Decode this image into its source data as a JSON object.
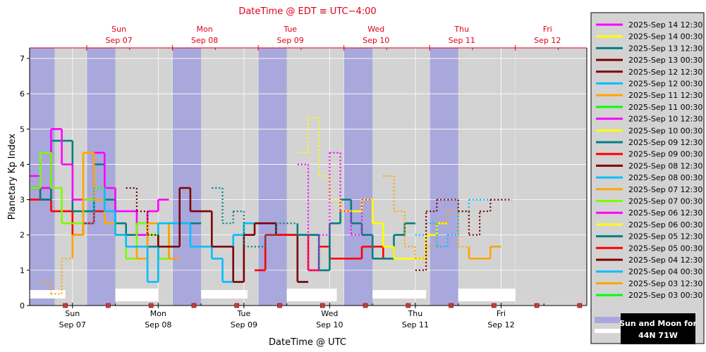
{
  "chart_data": {
    "type": "line",
    "top_title": "DateTime @ EDT ≡ UTC−4:00",
    "xlabel": "DateTime @ UTC",
    "ylabel": "Planetary Kp Index",
    "ylim": [
      0,
      7.3
    ],
    "y_ticks": [
      "0",
      "1",
      "2",
      "3",
      "4",
      "5",
      "6",
      "7"
    ],
    "x_range_days": [
      "2025-09-06 12:00",
      "2025-09-13 00:00"
    ],
    "top_day_labels": [
      {
        "day": "Sun",
        "date": "Sep 07"
      },
      {
        "day": "Mon",
        "date": "Sep 08"
      },
      {
        "day": "Tue",
        "date": "Sep 09"
      },
      {
        "day": "Wed",
        "date": "Sep 10"
      },
      {
        "day": "Thu",
        "date": "Sep 11"
      },
      {
        "day": "Fri",
        "date": "Sep 12"
      }
    ],
    "bottom_day_labels": [
      {
        "day": "Sun",
        "date": "Sep 07"
      },
      {
        "day": "Mon",
        "date": "Sep 08"
      },
      {
        "day": "Tue",
        "date": "Sep 09"
      },
      {
        "day": "Wed",
        "date": "Sep 10"
      },
      {
        "day": "Thu",
        "date": "Sep 11"
      },
      {
        "day": "Fri",
        "date": "Sep 12"
      }
    ],
    "night_bands_utc": [
      [
        "2025-09-06 12:00",
        "2025-09-06 19:00"
      ],
      [
        "2025-09-07 04:00",
        "2025-09-07 12:00"
      ],
      [
        "2025-09-08 04:00",
        "2025-09-08 12:00"
      ],
      [
        "2025-09-09 04:00",
        "2025-09-09 12:00"
      ],
      [
        "2025-09-10 04:00",
        "2025-09-10 12:00"
      ],
      [
        "2025-09-11 04:00",
        "2025-09-11 12:00"
      ]
    ],
    "moon_bars_utc": [
      [
        "2025-09-06 12:00",
        "2025-09-06 22:00"
      ],
      [
        "2025-09-07 12:00",
        "2025-09-08 00:00"
      ],
      [
        "2025-09-08 12:00",
        "2025-09-09 01:00"
      ],
      [
        "2025-09-09 12:00",
        "2025-09-10 02:00"
      ],
      [
        "2025-09-10 12:00",
        "2025-09-11 03:00"
      ],
      [
        "2025-09-11 12:00",
        "2025-09-12 04:00"
      ]
    ],
    "grid": true,
    "legend_placement": "right",
    "series": [
      {
        "name": "2025-Sep 14 12:30",
        "color": "#ff00ff",
        "dotted_until": null,
        "start": null,
        "values": []
      },
      {
        "name": "2025-Sep 14 00:30",
        "color": "#ffff00",
        "start": null,
        "values": []
      },
      {
        "name": "2025-Sep 13 12:30",
        "color": "#008080",
        "start": null,
        "values": []
      },
      {
        "name": "2025-Sep 13 00:30",
        "color": "#800000",
        "start": null,
        "values": []
      },
      {
        "name": "2025-Sep 12 12:30",
        "color": "#800000",
        "start": "2025-09-11 00:00",
        "dotted_until": "2025-09-12 15:00",
        "values": [
          1.0,
          2.67,
          3.0,
          3.0,
          2.67,
          2.0,
          2.67,
          3.0,
          3.0
        ]
      },
      {
        "name": "2025-Sep 12 00:30",
        "color": "#00bfff",
        "start": "2025-09-11 00:00",
        "dotted_until": "2025-09-12 03:00",
        "values": [
          2.0,
          2.33,
          1.67,
          2.0,
          2.67,
          3.0,
          3.0,
          3.0
        ]
      },
      {
        "name": "2025-Sep 11 12:30",
        "color": "#ffa500",
        "start": "2025-09-10 15:00",
        "dotted_until": "2025-09-11 15:00",
        "values": [
          3.67,
          2.67,
          1.67,
          1.33,
          1.67,
          2.33,
          2.67,
          1.67,
          1.33,
          1.33,
          1.67
        ]
      },
      {
        "name": "2025-Sep 11 00:30",
        "color": "#00ff00",
        "start": null,
        "values": []
      },
      {
        "name": "2025-Sep 10 12:30",
        "color": "#ff00ff",
        "start": "2025-09-09 15:00",
        "dotted_until": "2025-09-10 15:00",
        "values": [
          4.0,
          1.0,
          2.0,
          4.33,
          2.67,
          2.0,
          3.0
        ]
      },
      {
        "name": "2025-Sep 10 00:30",
        "color": "#ffff00",
        "start": "2025-09-09 15:00",
        "dotted_until": "2025-09-10 03:00",
        "values": [
          4.33,
          5.33,
          3.67,
          3.0,
          2.67,
          2.67,
          3.0,
          2.33,
          1.67,
          1.33,
          1.33,
          1.33,
          2.0,
          2.33
        ]
      },
      {
        "name": "2025-Sep 09 12:30",
        "color": "#008080",
        "start": "2025-09-08 15:00",
        "dotted_until": "2025-09-09 15:00",
        "values": [
          3.33,
          2.33,
          2.67,
          1.67,
          1.67,
          2.0,
          2.33,
          2.33,
          2.0,
          2.0,
          1.0,
          2.33,
          3.0,
          2.33,
          2.0,
          1.33,
          1.33,
          2.0,
          2.33
        ]
      },
      {
        "name": "2025-Sep 09 00:30",
        "color": "#ff0000",
        "start": "2025-09-09 03:00",
        "values": [
          1.0,
          2.0,
          2.0,
          2.0,
          2.0,
          1.0,
          1.67,
          1.33,
          1.33,
          1.33,
          1.67,
          1.67,
          1.33
        ]
      },
      {
        "name": "2025-Sep 08 12:30",
        "color": "#800000",
        "start": "2025-09-07 15:00",
        "dotted_until": "2025-09-08 00:00",
        "values": [
          3.33,
          2.67,
          2.0,
          1.67,
          1.67,
          3.33,
          2.67,
          2.67,
          1.67,
          1.67,
          0.67,
          2.0,
          2.33,
          2.33,
          2.0,
          2.0,
          0.67
        ]
      },
      {
        "name": "2025-Sep 08 00:30",
        "color": "#00bfff",
        "start": "2025-09-07 03:00",
        "dotted_until": "2025-09-07 09:00",
        "values": [
          2.33,
          3.33,
          2.67,
          2.0,
          1.67,
          1.67,
          0.67,
          2.33,
          2.33,
          2.33,
          1.67,
          1.67,
          1.33,
          0.67,
          2.0,
          2.33,
          2.33,
          2.33,
          2.0,
          2.0,
          0.67
        ]
      },
      {
        "name": "2025-Sep 07 12:30",
        "color": "#ffa500",
        "start": "2025-09-06 15:00",
        "dotted_until": "2025-09-07 00:00",
        "values": [
          0.67,
          0.33,
          1.33,
          2.0,
          4.33,
          3.0,
          2.33,
          2.0,
          1.67,
          1.33,
          2.33,
          2.33,
          1.33
        ]
      },
      {
        "name": "2025-Sep 07 00:30",
        "color": "#7cfc00",
        "start": "2025-09-06 12:00",
        "values": [
          3.33,
          4.33,
          3.33,
          2.33,
          2.33,
          3.0,
          3.33,
          2.33,
          2.0,
          1.33,
          2.33,
          2.0,
          1.33,
          2.33
        ]
      },
      {
        "name": "2025-Sep 06 12:30",
        "color": "#ff00ff",
        "start": "2025-09-06 12:00",
        "values": [
          3.67,
          3.33,
          5.0,
          4.0,
          3.0,
          3.0,
          4.33,
          3.33,
          2.67,
          2.67,
          2.0,
          2.67,
          3.0
        ]
      },
      {
        "name": "2025-Sep 06 00:30",
        "color": "#ffff00",
        "start": null,
        "values": []
      },
      {
        "name": "2025-Sep 05 12:30",
        "color": "#008080",
        "start": "2025-09-06 12:00",
        "values": [
          3.33,
          3.0,
          4.67,
          4.67,
          2.67,
          2.67,
          4.0,
          3.0,
          2.33,
          2.0,
          2.33,
          1.67,
          1.33,
          2.33,
          2.33,
          2.33
        ]
      },
      {
        "name": "2025-Sep 05 00:30",
        "color": "#ff0000",
        "start": "2025-09-06 12:00",
        "values": [
          3.0,
          3.33,
          2.67,
          2.67,
          2.0,
          2.33,
          2.67
        ]
      },
      {
        "name": "2025-Sep 04 12:30",
        "color": "#800000",
        "start": "2025-09-06 12:00",
        "values": [
          3.33,
          3.0
        ]
      },
      {
        "name": "2025-Sep 04 00:30",
        "color": "#00bfff",
        "start": null,
        "values": []
      },
      {
        "name": "2025-Sep 03 12:30",
        "color": "#ffa500",
        "start": null,
        "values": []
      },
      {
        "name": "2025-Sep 03 00:30",
        "color": "#00ff00",
        "start": null,
        "values": []
      }
    ],
    "legend_extra": {
      "night_swatch_color": "#a8a8dc",
      "moon_swatch_color": "#ffffff"
    },
    "badge_line1": "Sun and Moon for",
    "badge_line2": "44N 71W"
  }
}
